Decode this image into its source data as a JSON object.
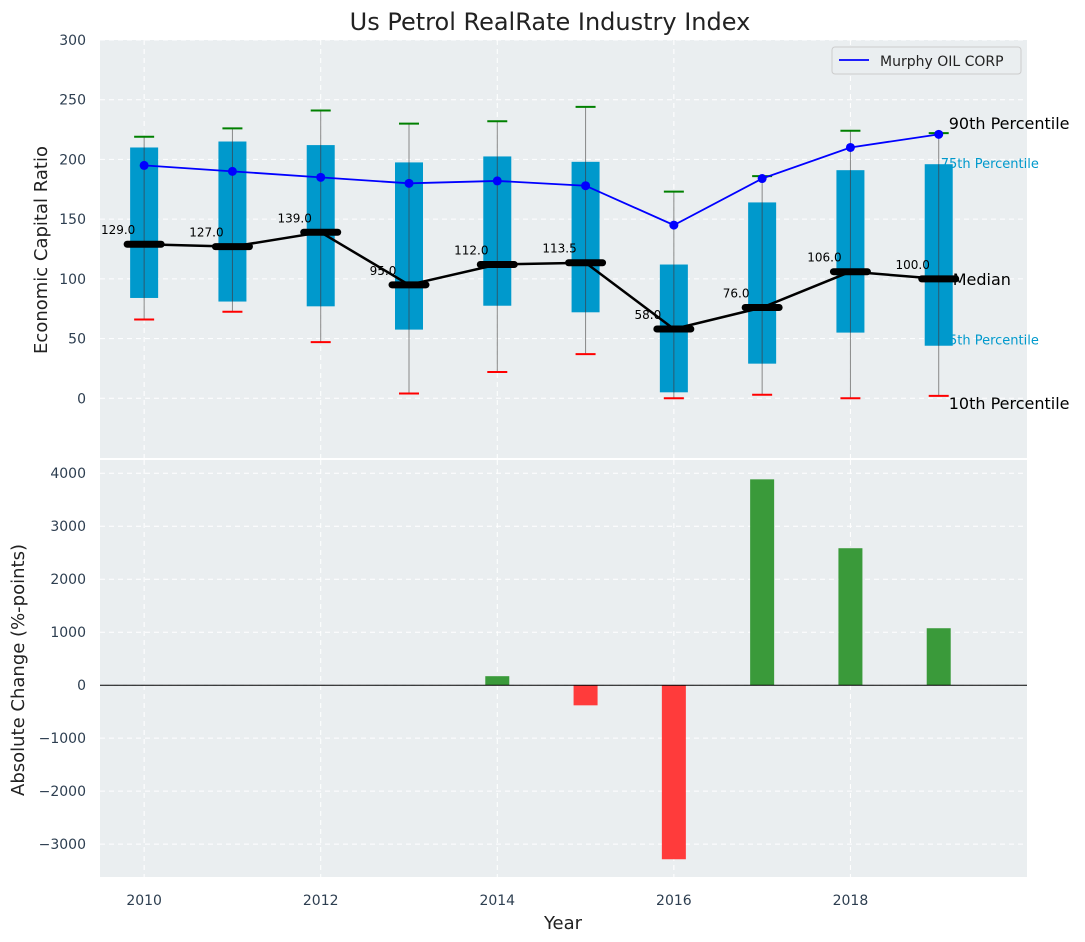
{
  "chart_data": [
    {
      "type": "box",
      "title": "Us Petrol RealRate Industry Index",
      "xlabel": "",
      "ylabel": "Economic Capital Ratio",
      "ylim": [
        -50,
        300
      ],
      "xlim": [
        2009.5,
        2020
      ],
      "yticks": [
        0,
        50,
        100,
        150,
        200,
        250,
        300
      ],
      "grid": true,
      "legend": {
        "placement": "top-right",
        "entries": [
          "Murphy OIL CORP"
        ]
      },
      "x": [
        2010,
        2011,
        2012,
        2013,
        2014,
        2015,
        2016,
        2017,
        2018,
        2019
      ],
      "p10": [
        66,
        72.5,
        47,
        4,
        22,
        37,
        0,
        3,
        0,
        2
      ],
      "p25": [
        84,
        81,
        77,
        57.5,
        77.5,
        72,
        5,
        29,
        55,
        44
      ],
      "median": [
        129.0,
        127.0,
        139.0,
        95.0,
        112.0,
        113.5,
        58.0,
        76.0,
        106.0,
        100.0
      ],
      "median_labels": [
        "129.0",
        "127.0",
        "139.0",
        "95.0",
        "112.0",
        "113.5",
        "58.0",
        "76.0",
        "106.0",
        "100.0"
      ],
      "p75": [
        210,
        215,
        212,
        197.5,
        202.5,
        198,
        112,
        164,
        191,
        196
      ],
      "p90": [
        219,
        226,
        241,
        230,
        232,
        244,
        173,
        186,
        224,
        222
      ],
      "series": [
        {
          "name": "Murphy OIL CORP",
          "values": [
            195,
            190,
            185,
            180,
            182,
            178,
            145,
            184,
            210,
            221
          ]
        }
      ],
      "annotations": [
        "90th Percentile",
        "75th Percentile",
        "Median",
        "25th Percentile",
        "10th Percentile"
      ],
      "colors": {
        "box": "#0099cc",
        "line": "#0000ff",
        "median": "#000000",
        "cap_high": "#008000",
        "cap_low": "#ff0000",
        "annot": "#0099cc",
        "bg": "#eaeef0"
      }
    },
    {
      "type": "bar",
      "xlabel": "Year",
      "ylabel": "Absolute Change (%-points)",
      "ylim": [
        -3620,
        4250
      ],
      "yticks": [
        -3000,
        -2000,
        -1000,
        0,
        1000,
        2000,
        3000,
        4000
      ],
      "ytick_labels": [
        "−3000",
        "−2000",
        "−1000",
        "0",
        "1000",
        "2000",
        "3000",
        "4000"
      ],
      "xticks": [
        2010,
        2012,
        2014,
        2016,
        2018
      ],
      "x": [
        2010,
        2011,
        2012,
        2013,
        2014,
        2015,
        2016,
        2017,
        2018,
        2019
      ],
      "values": [
        0,
        0,
        0,
        0,
        170,
        -380,
        -3285,
        3885,
        2585,
        1075
      ],
      "colors": {
        "pos": "#3a9a3a",
        "neg": "#ff3b3b"
      }
    }
  ]
}
